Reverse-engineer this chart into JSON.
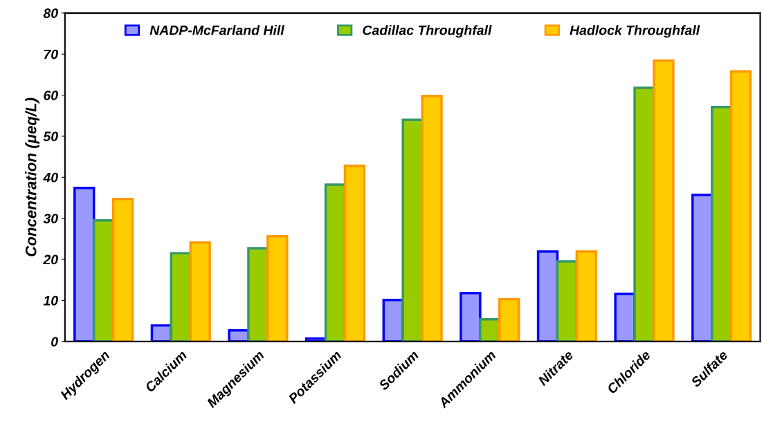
{
  "chart_data": {
    "type": "bar",
    "ylabel": "Concentration (μeq/L)",
    "categories": [
      "Hydrogen",
      "Calcium",
      "Magnesium",
      "Potassium",
      "Sodium",
      "Ammonium",
      "Nitrate",
      "Chloride",
      "Sulfate"
    ],
    "series": [
      {
        "name": "NADP-McFarland Hill",
        "color": "#9999ff",
        "values": [
          37.4,
          3.9,
          2.7,
          0.7,
          10.1,
          11.8,
          21.9,
          11.6,
          35.7
        ]
      },
      {
        "name": "Cadillac Throughfall",
        "color": "#99cc00",
        "values": [
          29.5,
          21.5,
          22.7,
          38.2,
          54.0,
          5.4,
          19.5,
          61.8,
          57.1
        ]
      },
      {
        "name": "Hadlock Throughfall",
        "color": "#ffcc00",
        "values": [
          34.7,
          24.1,
          25.6,
          42.8,
          59.8,
          10.3,
          21.9,
          68.4,
          65.8
        ]
      }
    ],
    "ylim": [
      0,
      80
    ],
    "yticks": [
      0,
      10,
      20,
      30,
      40,
      50,
      60,
      70,
      80
    ],
    "grid": false,
    "legend": "top"
  }
}
